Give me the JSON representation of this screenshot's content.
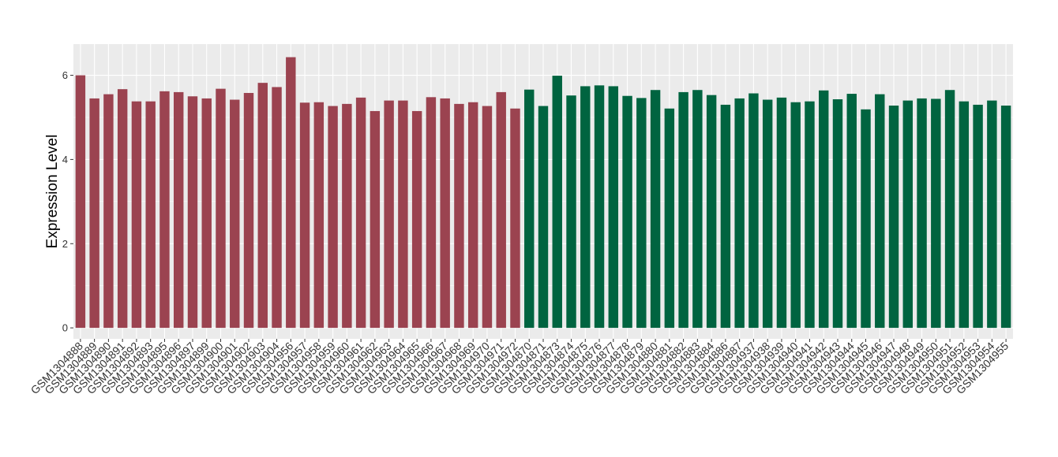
{
  "chart_data": {
    "type": "bar",
    "title": "",
    "xlabel": "",
    "ylabel": "Expression Level",
    "ylim": [
      -0.26,
      6.74
    ],
    "yticks": [
      0,
      2,
      4,
      6
    ],
    "grid": true,
    "colors": {
      "group1": "#9B4350",
      "group2": "#006440",
      "panel": "#EBEBEB",
      "grid": "#FFFFFF"
    },
    "categories": [
      "GSM1304888",
      "GSM1304889",
      "GSM1304890",
      "GSM1304891",
      "GSM1304892",
      "GSM1304893",
      "GSM1304895",
      "GSM1304896",
      "GSM1304897",
      "GSM1304899",
      "GSM1304900",
      "GSM1304901",
      "GSM1304902",
      "GSM1304903",
      "GSM1304904",
      "GSM1304956",
      "GSM1304957",
      "GSM1304958",
      "GSM1304959",
      "GSM1304960",
      "GSM1304961",
      "GSM1304962",
      "GSM1304963",
      "GSM1304964",
      "GSM1304965",
      "GSM1304966",
      "GSM1304967",
      "GSM1304968",
      "GSM1304969",
      "GSM1304970",
      "GSM1304971",
      "GSM1304972",
      "GSM1304870",
      "GSM1304871",
      "GSM1304873",
      "GSM1304874",
      "GSM1304875",
      "GSM1304876",
      "GSM1304877",
      "GSM1304878",
      "GSM1304879",
      "GSM1304880",
      "GSM1304881",
      "GSM1304882",
      "GSM1304883",
      "GSM1304884",
      "GSM1304886",
      "GSM1304887",
      "GSM1304937",
      "GSM1304938",
      "GSM1304939",
      "GSM1304940",
      "GSM1304941",
      "GSM1304942",
      "GSM1304943",
      "GSM1304944",
      "GSM1304945",
      "GSM1304946",
      "GSM1304947",
      "GSM1304948",
      "GSM1304949",
      "GSM1304950",
      "GSM1304951",
      "GSM1304952",
      "GSM1304953",
      "GSM1304954",
      "GSM1304955"
    ],
    "values": [
      6.0,
      5.45,
      5.55,
      5.67,
      5.38,
      5.38,
      5.62,
      5.6,
      5.5,
      5.45,
      5.68,
      5.42,
      5.58,
      5.82,
      5.72,
      6.43,
      5.35,
      5.36,
      5.27,
      5.32,
      5.47,
      5.15,
      5.4,
      5.4,
      5.15,
      5.48,
      5.45,
      5.32,
      5.36,
      5.27,
      5.6,
      5.21,
      5.66,
      5.27,
      5.99,
      5.52,
      5.74,
      5.76,
      5.74,
      5.51,
      5.46,
      5.65,
      5.21,
      5.6,
      5.65,
      5.53,
      5.3,
      5.45,
      5.57,
      5.42,
      5.47,
      5.36,
      5.38,
      5.64,
      5.43,
      5.56,
      5.19,
      5.55,
      5.28,
      5.4,
      5.45,
      5.44,
      5.65,
      5.38,
      5.3,
      5.4,
      5.28
    ],
    "group_sizes": [
      32,
      35
    ]
  }
}
